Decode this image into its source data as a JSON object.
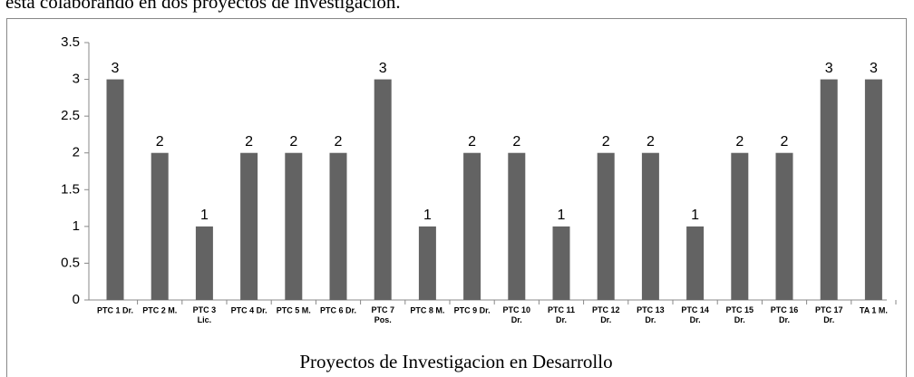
{
  "text": "está colaborando en dos proyectos de investigación.",
  "chart_data": {
    "type": "bar",
    "xlabel": "Proyectos de Investigacion en Desarrollo",
    "categories": [
      "PTC 1 Dr.",
      "PTC 2 M.",
      "PTC 3 Lic.",
      "PTC 4 Dr.",
      "PTC 5 M.",
      "PTC 6 Dr.",
      "PTC 7 Pos.",
      "PTC 8 M.",
      "PTC 9 Dr.",
      "PTC 10 Dr.",
      "PTC 11 Dr.",
      "PTC 12 Dr.",
      "PTC 13 Dr.",
      "PTC 14 Dr.",
      "PTC 15 Dr.",
      "PTC 16 Dr.",
      "PTC 17 Dr.",
      "TA 1 M."
    ],
    "values": [
      3,
      2,
      1,
      2,
      2,
      2,
      3,
      1,
      2,
      2,
      1,
      2,
      2,
      1,
      2,
      2,
      3,
      3
    ],
    "color": "#636363",
    "ylim": [
      0,
      3.5
    ],
    "yticks": [
      0,
      0.5,
      1,
      1.5,
      2,
      2.5,
      3,
      3.5
    ],
    "grid": false,
    "value_labels_shown": true
  }
}
